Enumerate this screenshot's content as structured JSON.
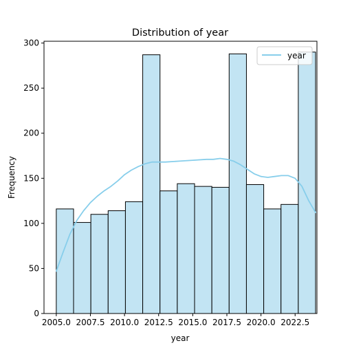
{
  "chart_data": {
    "type": "bar",
    "title": "Distribution of year",
    "xlabel": "year",
    "ylabel": "Frequency",
    "xlim": [
      2004.1,
      2024.1
    ],
    "ylim": [
      0,
      302
    ],
    "xticks": [
      2005.0,
      2007.5,
      2010.0,
      2012.5,
      2015.0,
      2017.5,
      2020.0,
      2022.5
    ],
    "xtick_labels": [
      "2005.0",
      "2007.5",
      "2010.0",
      "2012.5",
      "2015.0",
      "2017.5",
      "2020.0",
      "2022.5"
    ],
    "yticks": [
      0,
      50,
      100,
      150,
      200,
      250,
      300
    ],
    "ytick_labels": [
      "0",
      "50",
      "100",
      "150",
      "200",
      "250",
      "300"
    ],
    "bin_edges": [
      2005.0,
      2006.2667,
      2007.5333,
      2008.8,
      2010.0667,
      2011.3333,
      2012.6,
      2013.8667,
      2015.1333,
      2016.4,
      2017.6667,
      2018.9333,
      2020.2,
      2021.4667,
      2022.7333,
      2024.0
    ],
    "values": [
      116,
      101,
      110,
      114,
      124,
      287,
      136,
      144,
      141,
      140,
      288,
      143,
      116,
      121,
      290
    ],
    "bar_color": "#c2e4f3",
    "bar_edge_color": "#000000",
    "series": [
      {
        "name": "year",
        "type": "kde",
        "color": "#87ceeb",
        "x": [
          2005.0,
          2005.5,
          2006.0,
          2006.5,
          2007.0,
          2007.5,
          2008.0,
          2008.5,
          2009.0,
          2009.5,
          2010.0,
          2010.5,
          2011.0,
          2011.5,
          2012.0,
          2013.0,
          2014.0,
          2015.0,
          2016.0,
          2016.5,
          2017.0,
          2017.5,
          2018.0,
          2018.5,
          2019.0,
          2019.5,
          2020.0,
          2020.5,
          2021.0,
          2021.5,
          2022.0,
          2022.5,
          2023.0,
          2023.5,
          2024.0
        ],
        "values": [
          47,
          68,
          88,
          103,
          114,
          123,
          130,
          136,
          141,
          147,
          154,
          159,
          163,
          166,
          168,
          168,
          169,
          170,
          171,
          171,
          172,
          171,
          169,
          165,
          160,
          155,
          152,
          151,
          152,
          153,
          153,
          150,
          141,
          125,
          112
        ]
      }
    ],
    "legend": {
      "entries": [
        "year"
      ],
      "position": "top-right"
    },
    "grid": false
  }
}
